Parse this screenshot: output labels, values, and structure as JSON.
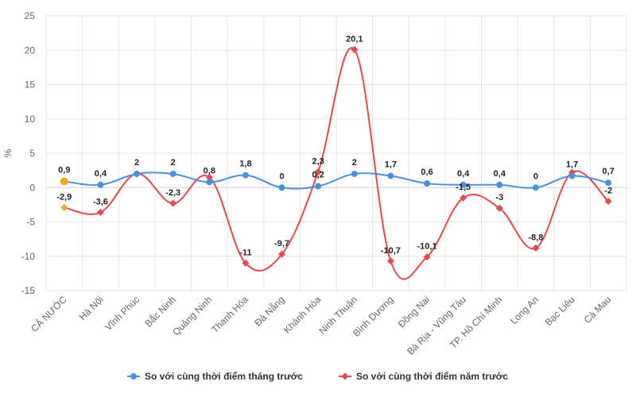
{
  "chart_data": {
    "type": "line",
    "ylabel": "%",
    "ylim": [
      -15,
      25
    ],
    "yticks": [
      -15,
      -10,
      -5,
      0,
      5,
      10,
      15,
      20,
      25
    ],
    "grid": true,
    "legend_position": "bottom",
    "categories": [
      "CẢ NƯỚC",
      "Hà Nội",
      "Vĩnh Phúc",
      "Bắc Ninh",
      "Quảng Ninh",
      "Thanh Hóa",
      "Đà Nẵng",
      "Khánh Hòa",
      "Ninh Thuận",
      "Bình Dương",
      "Đồng Nai",
      "Bà Rịa - Vũng Tàu",
      "TP. Hồ Chí Minh",
      "Long An",
      "Bạc Liêu",
      "Cà Mau"
    ],
    "series": [
      {
        "name": "So với cùng thời điểm tháng trước",
        "color": "#4a90e2",
        "marker": "circle",
        "values": [
          0.9,
          0.4,
          2,
          2,
          0.8,
          1.8,
          0,
          0.2,
          2,
          1.7,
          0.6,
          0.4,
          0.4,
          0,
          1.7,
          0.7
        ],
        "labels": [
          "0,9",
          "0,4",
          "2",
          "2",
          "0,8",
          "1,8",
          "0",
          "0,2",
          "2",
          "1,7",
          "0,6",
          "0,4",
          "0,4",
          "0",
          "1,7",
          "0,7"
        ],
        "highlight_index": 0,
        "highlight_color": "#f5a623"
      },
      {
        "name": "So với cùng thời điểm năm trước",
        "color": "#e8474c",
        "marker": "diamond",
        "values": [
          -2.9,
          -3.6,
          2,
          -2.3,
          1.5,
          -11,
          -9.7,
          2.3,
          20.1,
          -10.7,
          -10.1,
          -1.5,
          -3,
          -8.8,
          2.2,
          -2
        ],
        "labels": [
          "-2,9",
          "-3,6",
          "",
          "-2,3",
          "",
          "-11",
          "-9,7",
          "2,3",
          "20,1",
          "-10,7",
          "-10,1",
          "-1,5",
          "-3",
          "-8,8",
          "",
          "-2"
        ],
        "highlight_index": 0,
        "highlight_color": "#f5a623"
      }
    ]
  }
}
